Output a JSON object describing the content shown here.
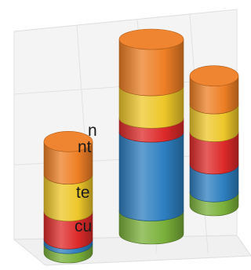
{
  "side_text": [
    "n",
    "nt",
    "te",
    "cu"
  ],
  "chart_data": {
    "type": "bar",
    "style": "stacked-3d-cylinder",
    "categories": [
      "",
      "",
      ""
    ],
    "series": [
      {
        "color": "#7ab03a",
        "values": [
          1.0,
          2.5,
          1.5
        ]
      },
      {
        "color": "#2d7fc0",
        "values": [
          0.5,
          8.5,
          3.0
        ]
      },
      {
        "color": "#dd2a2a",
        "values": [
          3.0,
          1.5,
          3.5
        ]
      },
      {
        "color": "#edc72a",
        "values": [
          4.0,
          3.5,
          3.0
        ]
      },
      {
        "color": "#ee7f25",
        "values": [
          3.5,
          5.0,
          3.0
        ]
      }
    ],
    "ylim": [
      0,
      21
    ],
    "grid": true,
    "legend": "none"
  }
}
